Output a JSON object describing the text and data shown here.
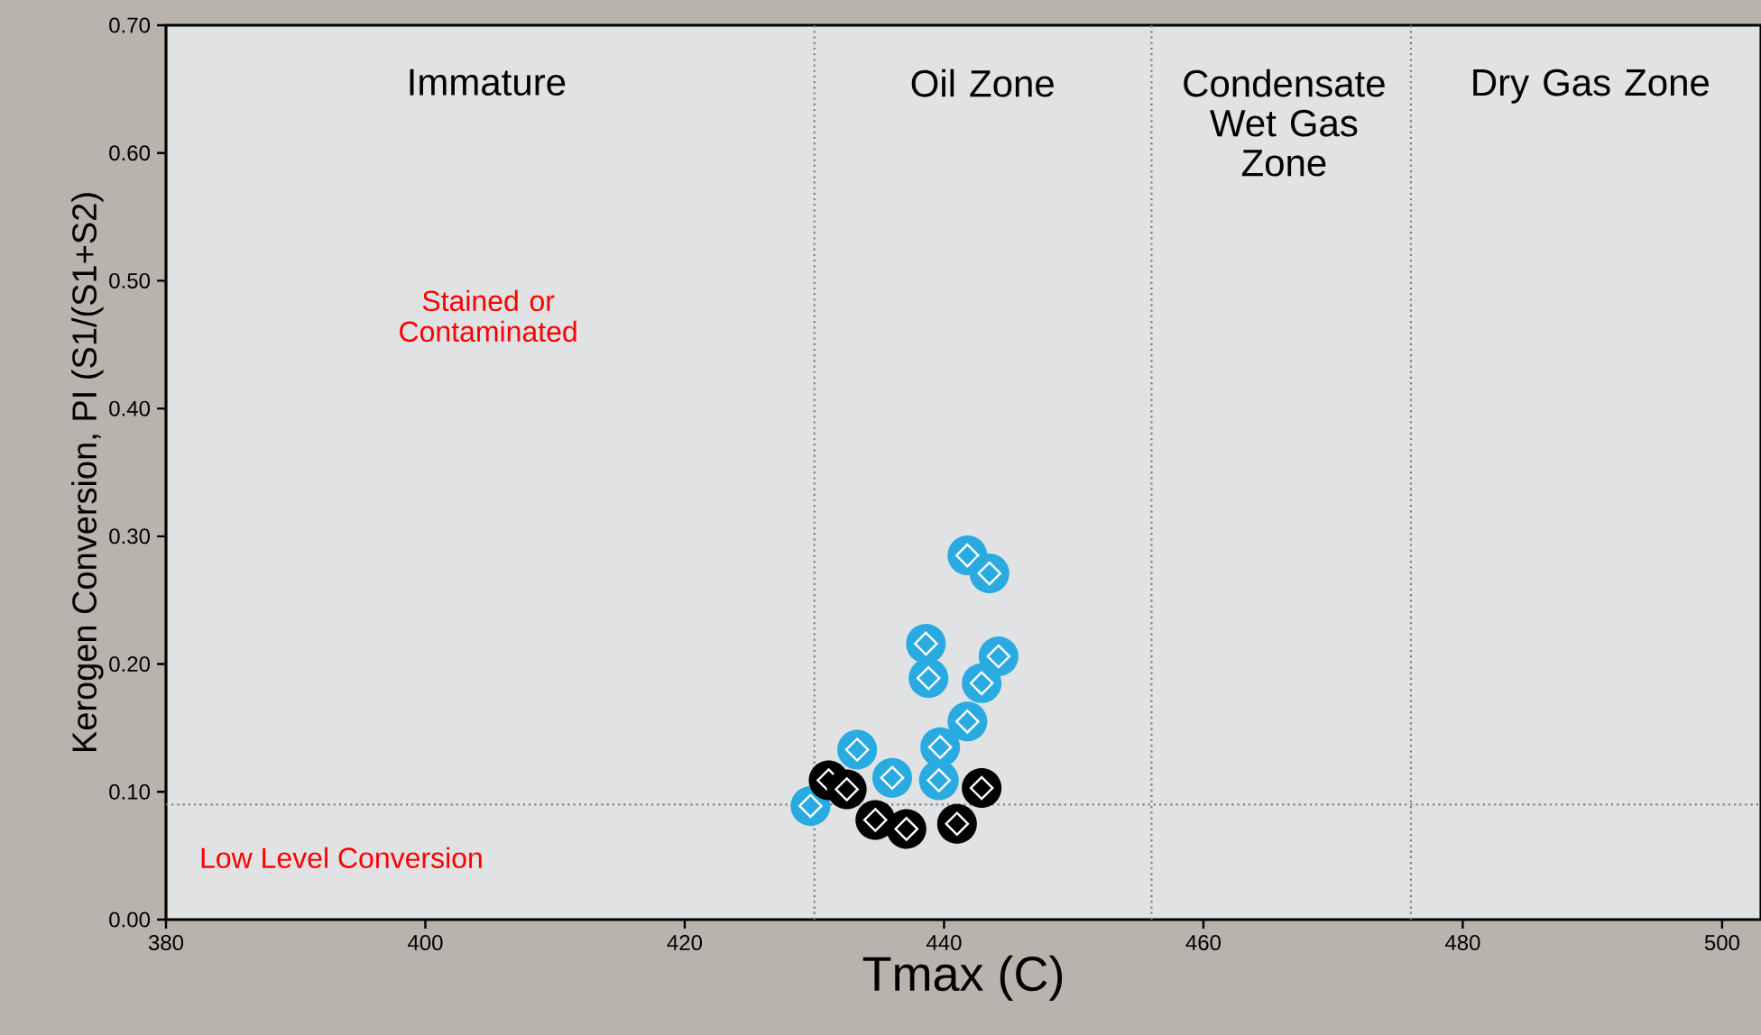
{
  "chart_data": {
    "type": "scatter",
    "xlabel": "Tmax (C)",
    "ylabel": "Kerogen Conversion, PI (S1/(S1+S2)",
    "xlim": [
      380,
      503
    ],
    "ylim": [
      0,
      0.7
    ],
    "xticks": [
      380,
      400,
      420,
      440,
      460,
      480,
      500
    ],
    "yticks": [
      {
        "value": 0,
        "label": "0.00"
      },
      {
        "value": 0.1,
        "label": "0.10"
      },
      {
        "value": 0.2,
        "label": "0.20"
      },
      {
        "value": 0.3,
        "label": "0.30"
      },
      {
        "value": 0.4,
        "label": "0.40"
      },
      {
        "value": 0.5,
        "label": "0.50"
      },
      {
        "value": 0.6,
        "label": "0.60"
      },
      {
        "value": 0.7,
        "label": "0.70"
      }
    ],
    "marker": "circle",
    "grid": false,
    "series": [
      {
        "color": "#29abe2",
        "x": [
          429.7,
          433.3,
          436.0,
          438.6,
          438.8,
          439.6,
          439.7,
          441.8,
          441.8,
          443.5,
          442.9,
          444.2
        ],
        "values": [
          0.089,
          0.133,
          0.111,
          0.216,
          0.189,
          0.109,
          0.135,
          0.155,
          0.285,
          0.271,
          0.185,
          0.206
        ]
      },
      {
        "color": "#000000",
        "x": [
          431.1,
          432.5,
          434.7,
          437.1,
          441.0,
          442.9
        ],
        "values": [
          0.109,
          0.102,
          0.078,
          0.071,
          0.075,
          0.103
        ]
      }
    ],
    "ref_lines": [
      {
        "axis": "x",
        "value": 430,
        "color": "#808080",
        "line_style": "dotted"
      },
      {
        "axis": "x",
        "value": 456,
        "color": "#808080",
        "line_style": "dotted"
      },
      {
        "axis": "x",
        "value": 476,
        "color": "#808080",
        "line_style": "dotted"
      },
      {
        "axis": "y",
        "value": 0.09,
        "label": "Low Level Conversion",
        "color": "#808080",
        "line_style": "dotted"
      }
    ],
    "annotations": [
      "Immature",
      "Oil Zone",
      "Condensate Wet Gas Zone",
      "Dry Gas Zone",
      "Stained or Contaminated"
    ]
  }
}
